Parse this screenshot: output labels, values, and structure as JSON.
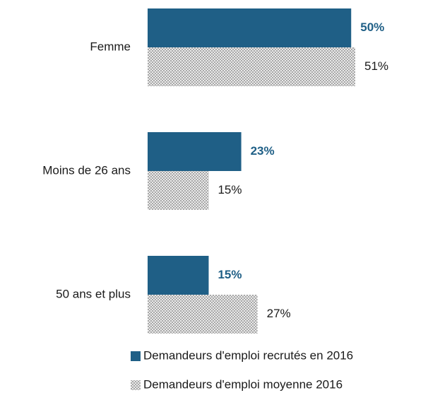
{
  "chart_data": {
    "type": "barh",
    "categories": [
      "Femme",
      "Moins de 26 ans",
      "50 ans et plus"
    ],
    "series": [
      {
        "name": "Demandeurs d'emploi recrutés en 2016",
        "color": "#1f5f86",
        "values": [
          50,
          23,
          15
        ],
        "value_labels": [
          "50%",
          "23%",
          "15%"
        ]
      },
      {
        "name": "Demandeurs d'emploi moyenne 2016",
        "color": "#9a9a9a",
        "pattern": "crosshatch",
        "values": [
          51,
          15,
          27
        ],
        "value_labels": [
          "51%",
          "15%",
          "27%"
        ]
      }
    ],
    "legend": "bottom"
  }
}
